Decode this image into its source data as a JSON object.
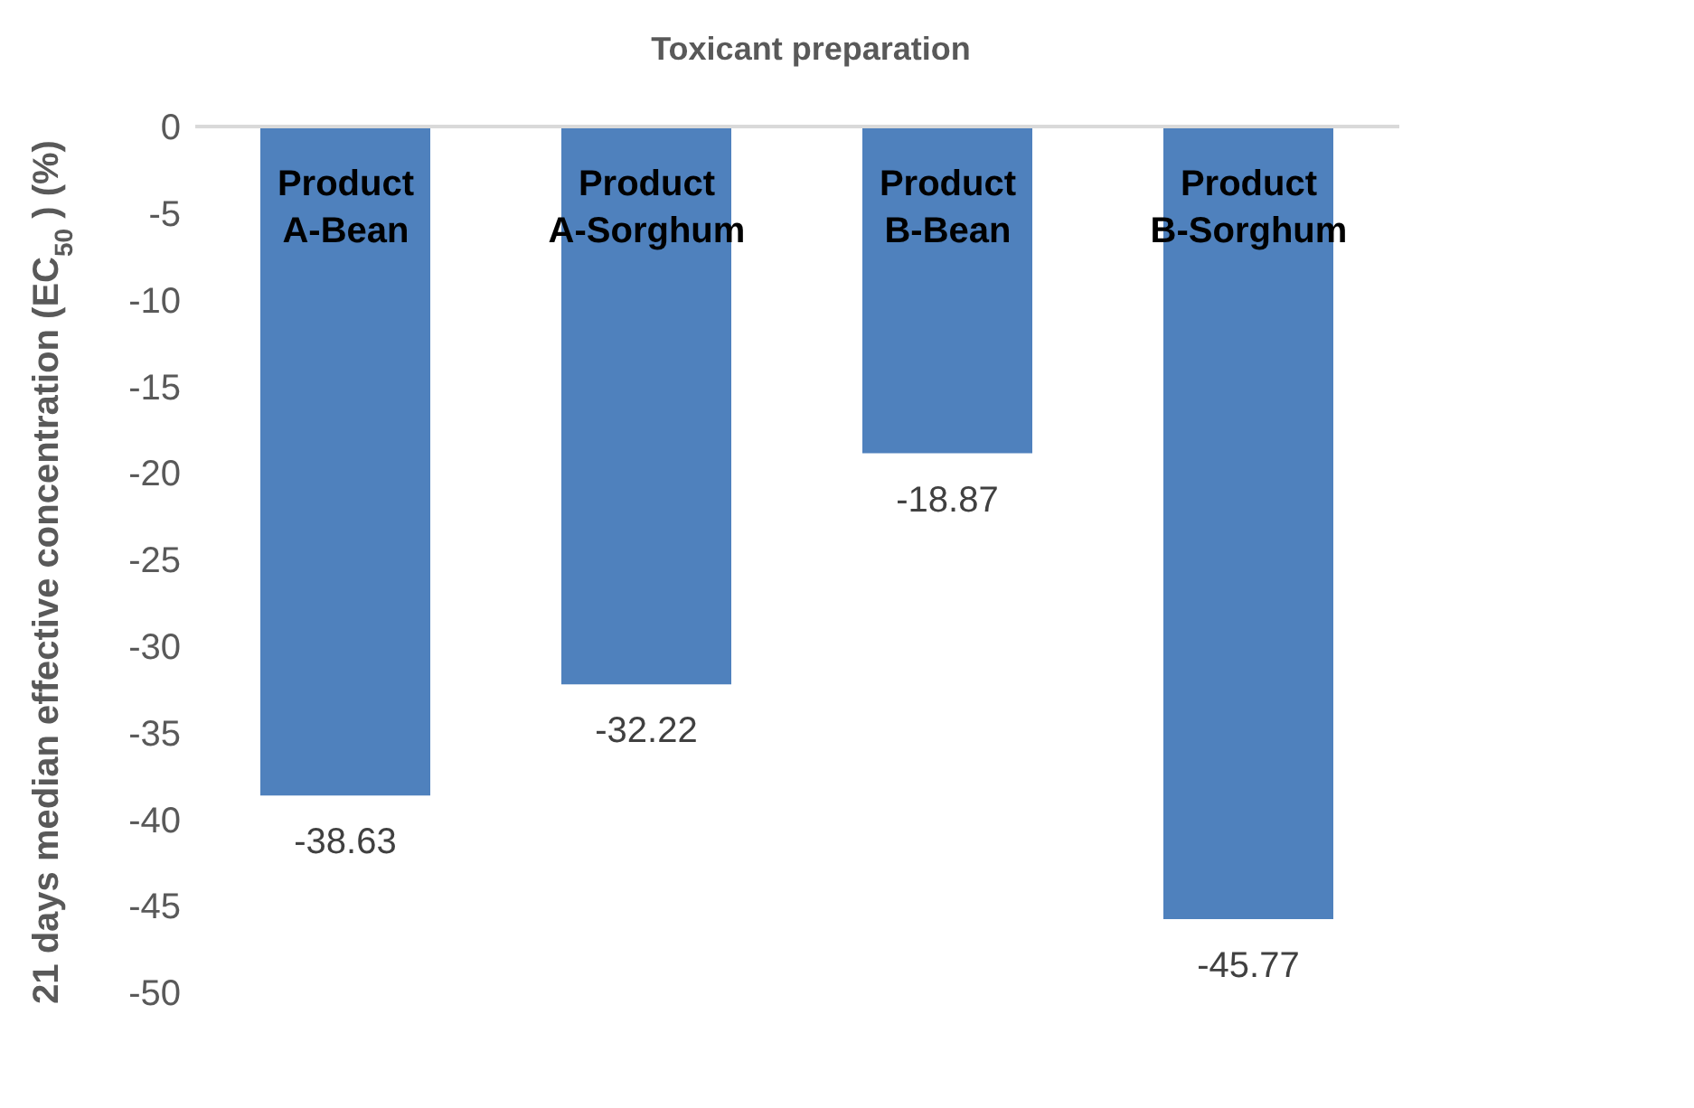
{
  "chart_data": {
    "type": "bar",
    "title": "Toxicant preparation",
    "ylabel": "21 days median effective concentration (EC$_{50}$ ) (%)",
    "categories": [
      "Product A-Bean",
      "Product A-Sorghum",
      "Product B-Bean",
      "Product B-Sorghum"
    ],
    "values": [
      -38.63,
      -32.22,
      -18.87,
      -45.77
    ],
    "color": "#4f81bd",
    "ylim": [
      -50,
      0
    ],
    "yticks": [
      0,
      -5,
      -10,
      -15,
      -20,
      -25,
      -30,
      -35,
      -40,
      -45,
      -50
    ],
    "data_labels": true,
    "grid": false,
    "legend": false
  }
}
